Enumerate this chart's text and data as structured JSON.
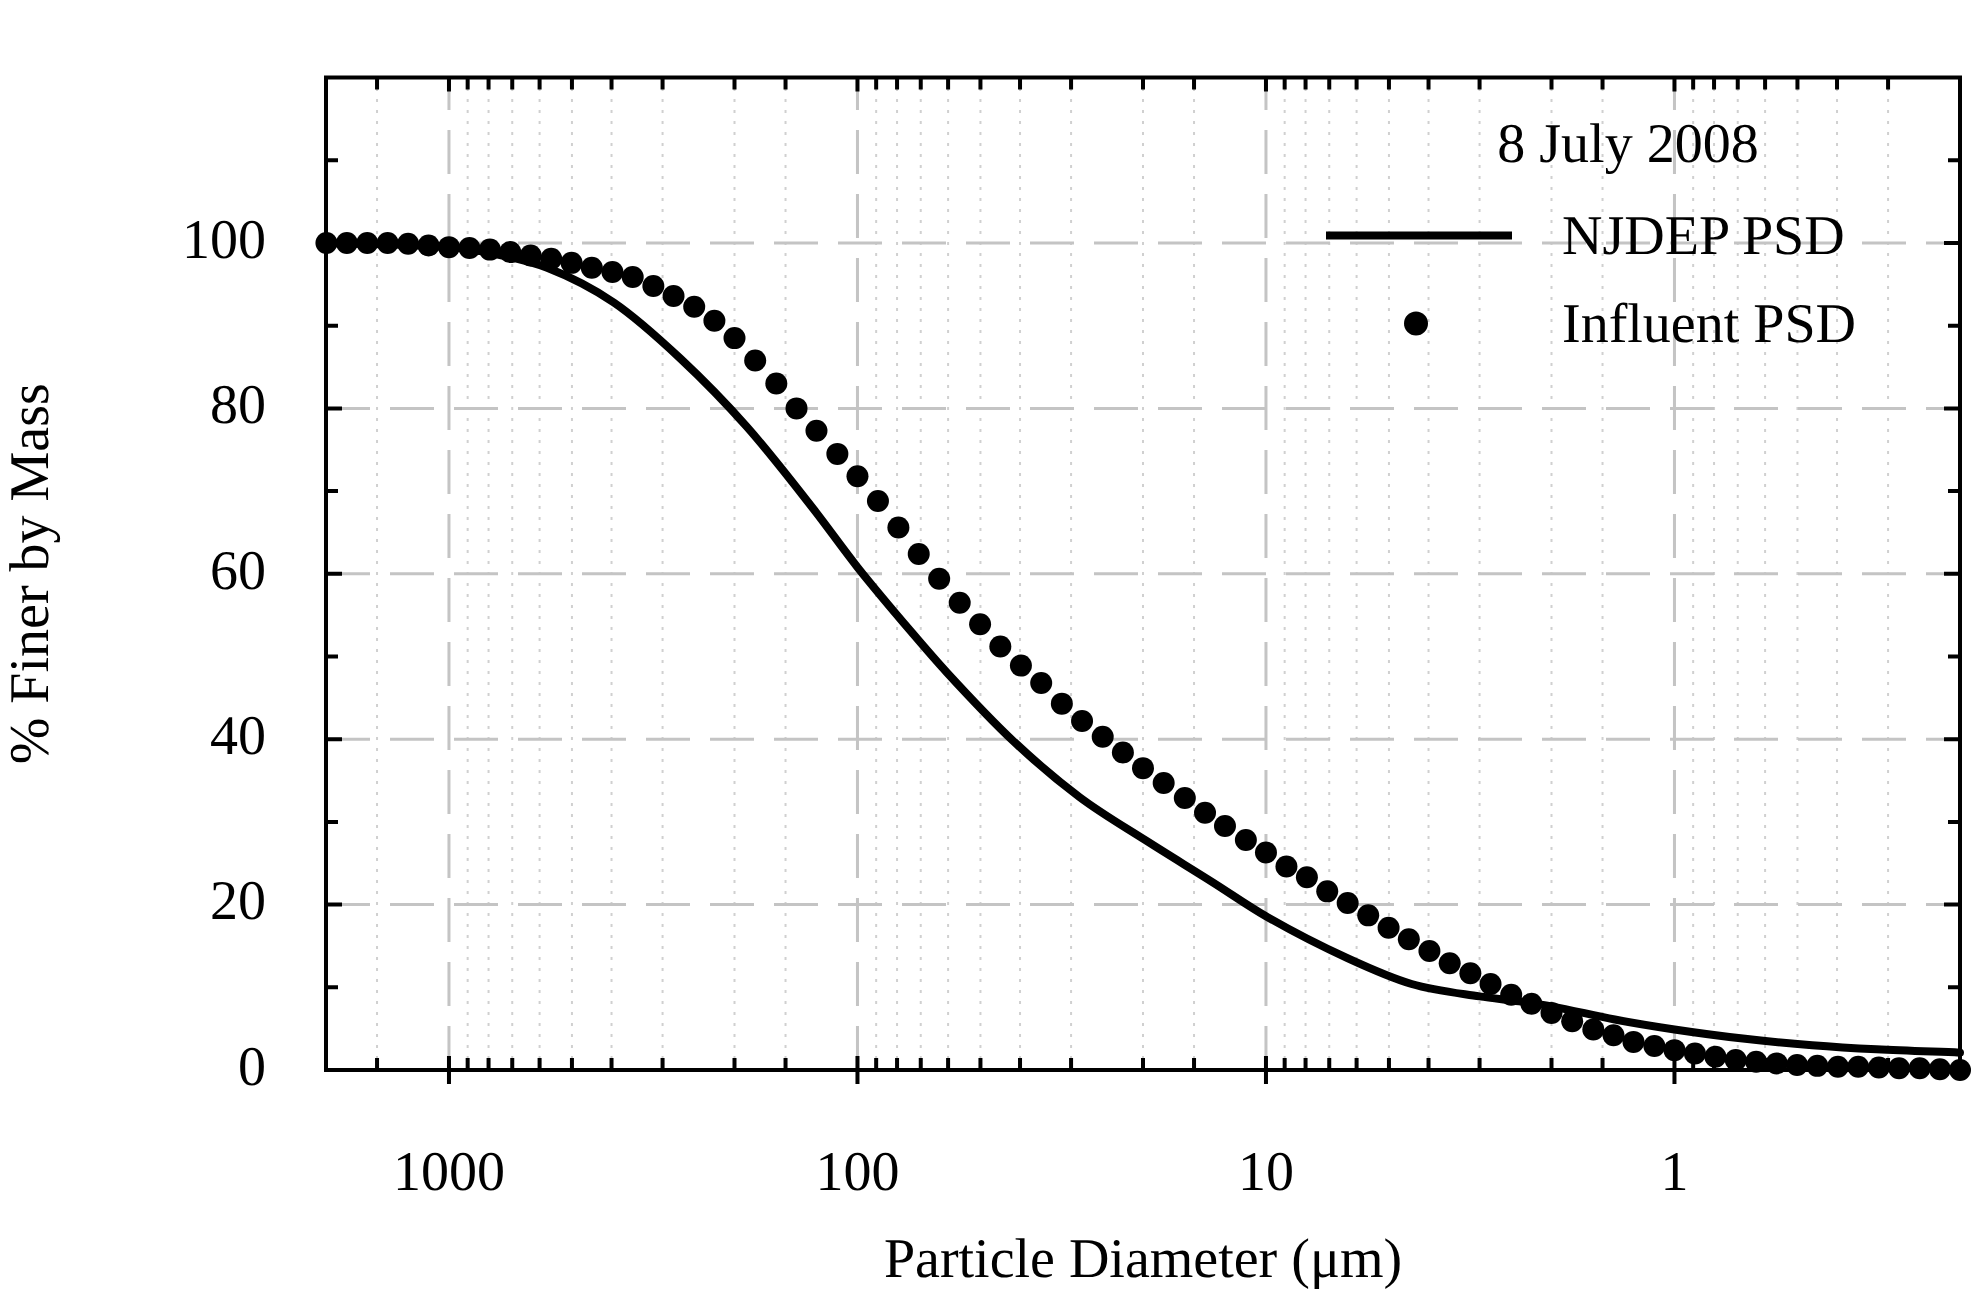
{
  "chart_data": {
    "type": "line",
    "xlabel": "Particle Diameter (μm)",
    "ylabel": "% Finer by Mass",
    "legend_title": "8 July 2008",
    "legend": "top right",
    "grid": true,
    "log": "x",
    "xlim": [
      2000,
      0.2
    ],
    "ylim": [
      0,
      120
    ],
    "xticks": [
      {
        "value": 1500,
        "label": null
      },
      1000,
      {
        "value": 900,
        "label": null
      },
      {
        "value": 800,
        "label": null
      },
      {
        "value": 700,
        "label": null
      },
      {
        "value": 600,
        "label": null
      },
      {
        "value": 500,
        "label": null
      },
      {
        "value": 400,
        "label": null
      },
      {
        "value": 300,
        "label": null
      },
      {
        "value": 200,
        "label": null
      },
      {
        "value": 150,
        "label": null
      },
      100,
      {
        "value": 90,
        "label": null
      },
      {
        "value": 80,
        "label": null
      },
      {
        "value": 70,
        "label": null
      },
      {
        "value": 60,
        "label": null
      },
      {
        "value": 50,
        "label": null
      },
      {
        "value": 40,
        "label": null
      },
      {
        "value": 30,
        "label": null
      },
      {
        "value": 20,
        "label": null
      },
      {
        "value": 15,
        "label": null
      },
      10,
      {
        "value": 9,
        "label": null
      },
      {
        "value": 8,
        "label": null
      },
      {
        "value": 7,
        "label": null
      },
      {
        "value": 6,
        "label": null
      },
      {
        "value": 5,
        "label": null
      },
      {
        "value": 4,
        "label": null
      },
      {
        "value": 3,
        "label": null
      },
      {
        "value": 2,
        "label": null
      },
      {
        "value": 1.5,
        "label": null
      },
      1,
      {
        "value": 0.9,
        "label": null
      },
      {
        "value": 0.8,
        "label": null
      },
      {
        "value": 0.7,
        "label": null
      },
      {
        "value": 0.6,
        "label": null
      },
      {
        "value": 0.5,
        "label": null
      },
      {
        "value": 0.4,
        "label": null
      },
      {
        "value": 0.3,
        "label": null
      }
    ],
    "yticks": [
      0,
      {
        "value": 10,
        "label": null
      },
      20,
      {
        "value": 30,
        "label": null
      },
      40,
      {
        "value": 50,
        "label": null
      },
      60,
      {
        "value": 70,
        "label": null
      },
      80,
      {
        "value": 90,
        "label": null
      },
      100,
      {
        "value": 110,
        "label": null
      }
    ],
    "series": [
      {
        "name": "NJDEP PSD",
        "color": "#000000",
        "marker": "none",
        "line_style": "solid",
        "x": [
          2000,
          1000,
          794,
          575,
          395,
          271,
          186,
          128,
          100,
          73,
          60.5,
          41.6,
          28.6,
          19.6,
          13.5,
          10,
          6.3,
          4.4,
          3.0,
          2.4,
          2.0,
          1.4,
          1,
          0.68,
          0.46,
          0.32,
          0.2
        ],
        "values": [
          100,
          99.5,
          98.8,
          97.0,
          92.8,
          86.0,
          77.7,
          67.8,
          60.8,
          52.7,
          48.1,
          39.8,
          33.0,
          27.7,
          22.7,
          18.6,
          13.5,
          10.4,
          8.9,
          8.3,
          7.7,
          6.1,
          4.9,
          3.8,
          3.0,
          2.5,
          2.1
        ]
      },
      {
        "name": "Influent PSD",
        "type": "scatter",
        "color": "#000000",
        "marker": "circle",
        "x": [
          1995,
          1778,
          1585,
          1413,
          1259,
          1122,
          1000,
          891,
          794,
          708,
          631,
          562,
          501,
          447,
          398,
          355,
          316,
          282,
          251,
          224,
          200,
          178,
          158,
          141,
          126,
          112,
          100,
          89.1,
          79.4,
          70.8,
          63.1,
          56.2,
          50.1,
          44.7,
          39.8,
          35.5,
          31.6,
          28.2,
          25.1,
          22.4,
          20.0,
          17.8,
          15.8,
          14.1,
          12.6,
          11.2,
          10,
          8.91,
          7.94,
          7.08,
          6.31,
          5.62,
          5.01,
          4.47,
          3.98,
          3.55,
          3.16,
          2.82,
          2.51,
          2.24,
          2.0,
          1.78,
          1.58,
          1.41,
          1.26,
          1.12,
          1,
          0.891,
          0.794,
          0.708,
          0.631,
          0.562,
          0.501,
          0.447,
          0.398,
          0.355,
          0.316,
          0.282,
          0.251,
          0.224,
          0.2
        ],
        "values": [
          100,
          100,
          100,
          100,
          99.9,
          99.7,
          99.5,
          99.4,
          99.2,
          98.9,
          98.5,
          98.1,
          97.6,
          97.0,
          96.5,
          95.9,
          94.8,
          93.6,
          92.3,
          90.6,
          88.5,
          85.8,
          83.0,
          80.0,
          77.3,
          74.5,
          71.8,
          68.8,
          65.6,
          62.4,
          59.4,
          56.5,
          53.9,
          51.2,
          48.9,
          46.8,
          44.3,
          42.2,
          40.3,
          38.4,
          36.5,
          34.7,
          32.9,
          31.1,
          29.5,
          27.8,
          26.3,
          24.6,
          23.3,
          21.6,
          20.2,
          18.7,
          17.2,
          15.8,
          14.4,
          12.9,
          11.7,
          10.4,
          9.1,
          8.0,
          6.9,
          5.9,
          4.9,
          4.2,
          3.4,
          2.9,
          2.4,
          2.0,
          1.6,
          1.2,
          1.0,
          0.8,
          0.6,
          0.5,
          0.4,
          0.4,
          0.3,
          0.2,
          0.2,
          0.1,
          0
        ]
      }
    ]
  }
}
